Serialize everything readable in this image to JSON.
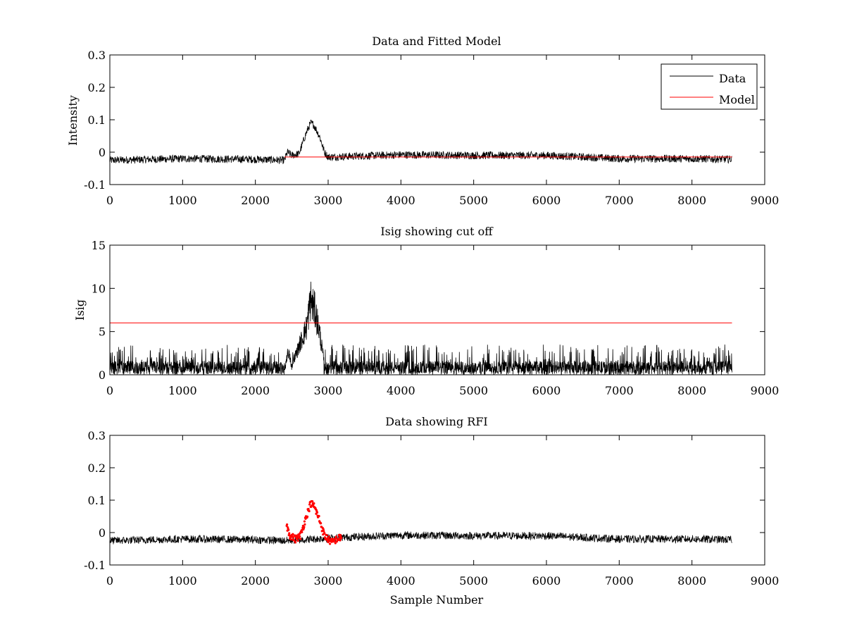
{
  "chart_data": [
    {
      "type": "line",
      "title": "Data and Fitted Model",
      "xlabel": "",
      "ylabel": "Intensity",
      "xlim": [
        0,
        9000
      ],
      "ylim": [
        -0.1,
        0.3
      ],
      "xticks": [
        0,
        1000,
        2000,
        3000,
        4000,
        5000,
        6000,
        7000,
        8000,
        9000
      ],
      "yticks": [
        -0.1,
        0,
        0.1,
        0.2,
        0.3
      ],
      "xtick_labels": [
        "0",
        "1000",
        "2000",
        "3000",
        "4000",
        "5000",
        "6000",
        "7000",
        "8000",
        "9000"
      ],
      "ytick_labels": [
        "-0.1",
        "0",
        "0.1",
        "0.2",
        "0.3"
      ],
      "legend": {
        "position": "top-right",
        "entries": [
          "Data",
          "Model"
        ]
      },
      "series": [
        {
          "name": "Data",
          "color": "#000000",
          "kind": "noisy-trace",
          "x_range": [
            0,
            8550
          ],
          "baseline": -0.022,
          "noise_amplitude": 0.012,
          "points": [
            [
              0,
              -0.025
            ],
            [
              1000,
              -0.02
            ],
            [
              2000,
              -0.022
            ],
            [
              2400,
              -0.025
            ],
            [
              2440,
              0.0
            ],
            [
              2500,
              -0.01
            ],
            [
              2600,
              -0.005
            ],
            [
              2700,
              0.06
            ],
            [
              2760,
              0.09
            ],
            [
              2800,
              0.085
            ],
            [
              2880,
              0.05
            ],
            [
              2950,
              0.0
            ],
            [
              3000,
              -0.015
            ],
            [
              4000,
              -0.008
            ],
            [
              5000,
              -0.01
            ],
            [
              6000,
              -0.01
            ],
            [
              7000,
              -0.02
            ],
            [
              8000,
              -0.02
            ],
            [
              8550,
              -0.022
            ]
          ]
        },
        {
          "name": "Model",
          "color": "#ff0000",
          "kind": "line",
          "points": [
            [
              2400,
              -0.015
            ],
            [
              8550,
              -0.015
            ]
          ]
        }
      ]
    },
    {
      "type": "line",
      "title": "Isig showing cut off",
      "xlabel": "",
      "ylabel": "Isig",
      "xlim": [
        0,
        9000
      ],
      "ylim": [
        0,
        15
      ],
      "xticks": [
        0,
        1000,
        2000,
        3000,
        4000,
        5000,
        6000,
        7000,
        8000,
        9000
      ],
      "yticks": [
        0,
        5,
        10,
        15
      ],
      "xtick_labels": [
        "0",
        "1000",
        "2000",
        "3000",
        "4000",
        "5000",
        "6000",
        "7000",
        "8000",
        "9000"
      ],
      "ytick_labels": [
        "0",
        "5",
        "10",
        "15"
      ],
      "series": [
        {
          "name": "Isig",
          "color": "#000000",
          "kind": "noisy-spikes",
          "x_range": [
            0,
            8550
          ],
          "noise_max": 3.0,
          "points": [
            [
              0,
              1.0
            ],
            [
              2400,
              1.0
            ],
            [
              2450,
              3.5
            ],
            [
              2500,
              1.5
            ],
            [
              2700,
              7.0
            ],
            [
              2760,
              11.2
            ],
            [
              2820,
              9.5
            ],
            [
              2880,
              6.5
            ],
            [
              2950,
              1.5
            ],
            [
              3000,
              1.0
            ],
            [
              8550,
              1.0
            ]
          ]
        },
        {
          "name": "Cut off",
          "color": "#ff0000",
          "kind": "line",
          "points": [
            [
              0,
              6.0
            ],
            [
              8550,
              6.0
            ]
          ]
        }
      ]
    },
    {
      "type": "line",
      "title": "Data showing RFI",
      "xlabel": "Sample Number",
      "ylabel": "",
      "xlim": [
        0,
        9000
      ],
      "ylim": [
        -0.1,
        0.3
      ],
      "xticks": [
        0,
        1000,
        2000,
        3000,
        4000,
        5000,
        6000,
        7000,
        8000,
        9000
      ],
      "yticks": [
        -0.1,
        0,
        0.1,
        0.2,
        0.3
      ],
      "xtick_labels": [
        "0",
        "1000",
        "2000",
        "3000",
        "4000",
        "5000",
        "6000",
        "7000",
        "8000",
        "9000"
      ],
      "ytick_labels": [
        "-0.1",
        "0",
        "0.1",
        "0.2",
        "0.3"
      ],
      "series": [
        {
          "name": "Data",
          "color": "#000000",
          "kind": "noisy-trace",
          "x_range": [
            0,
            8550
          ],
          "baseline": -0.022,
          "noise_amplitude": 0.012,
          "points": [
            [
              0,
              -0.025
            ],
            [
              1000,
              -0.02
            ],
            [
              2000,
              -0.022
            ],
            [
              2400,
              -0.025
            ],
            [
              3200,
              -0.015
            ],
            [
              4000,
              -0.008
            ],
            [
              5000,
              -0.01
            ],
            [
              6000,
              -0.01
            ],
            [
              7000,
              -0.02
            ],
            [
              8000,
              -0.02
            ],
            [
              8550,
              -0.022
            ]
          ]
        },
        {
          "name": "RFI",
          "color": "#ff0000",
          "kind": "markers",
          "x_range": [
            2430,
            3180
          ],
          "points": [
            [
              2430,
              0.02
            ],
            [
              2480,
              -0.01
            ],
            [
              2550,
              -0.02
            ],
            [
              2620,
              -0.01
            ],
            [
              2700,
              0.05
            ],
            [
              2760,
              0.09
            ],
            [
              2800,
              0.085
            ],
            [
              2880,
              0.04
            ],
            [
              2950,
              -0.01
            ],
            [
              3050,
              -0.03
            ],
            [
              3120,
              -0.02
            ],
            [
              3180,
              -0.015
            ]
          ]
        }
      ]
    }
  ]
}
